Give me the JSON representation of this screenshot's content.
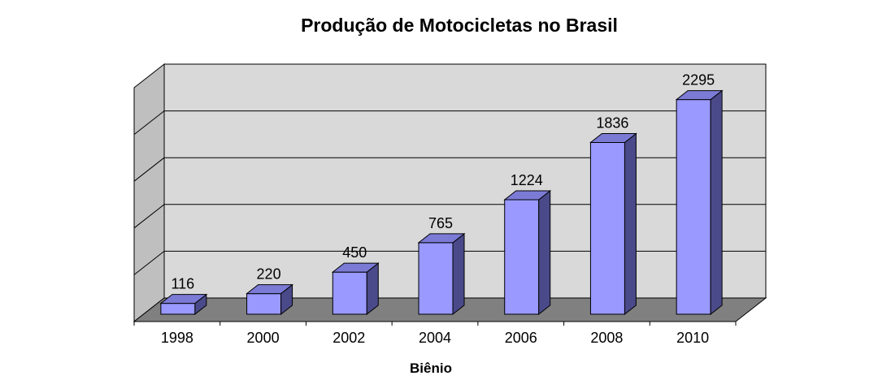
{
  "chart_data": {
    "type": "bar",
    "title": "Produção de Motocicletas no Brasil",
    "xlabel": "Biênio",
    "ylabel": "",
    "categories": [
      "1998",
      "2000",
      "2002",
      "2004",
      "2006",
      "2008",
      "2010"
    ],
    "values": [
      116,
      220,
      450,
      765,
      1224,
      1836,
      2295
    ],
    "data_labels": [
      "116",
      "220",
      "450",
      "765",
      "1224",
      "1836",
      "2295"
    ],
    "ylim": [
      0,
      2500
    ],
    "grid": true,
    "style": "3d",
    "colors": {
      "bar_front": "#9999FF",
      "bar_top": "#7B7BD6",
      "bar_side": "#4A4A8A",
      "bar_outline": "#000000",
      "back_wall": "#D9D9D9",
      "side_wall": "#BFBFBF",
      "floor": "#808080",
      "gridline": "#000000"
    }
  }
}
